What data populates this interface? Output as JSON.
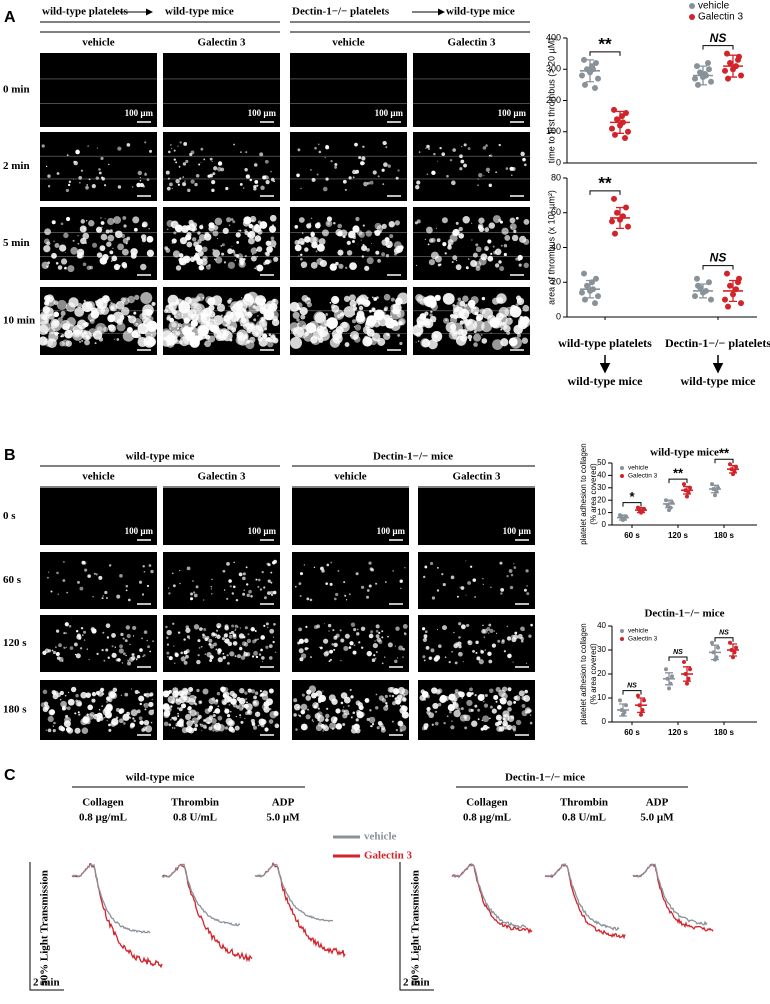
{
  "panel_a_images": {
    "label": "A",
    "groups": [
      {
        "platelets": "wild-type platelets",
        "mice": "wild-type mice"
      },
      {
        "platelets": "Dectin-1−/− platelets",
        "mice": "wild-type mice"
      }
    ],
    "columns": [
      "vehicle",
      "Galectin 3",
      "vehicle",
      "Galectin 3"
    ],
    "rows": [
      "0 min",
      "2 min",
      "5 min",
      "10 min"
    ],
    "scale_bar": "100 µm"
  },
  "panel_b_images": {
    "label": "B",
    "groups": [
      "wild-type mice",
      "Dectin-1−/− mice"
    ],
    "columns": [
      "vehicle",
      "Galectin 3",
      "vehicle",
      "Galectin 3"
    ],
    "rows": [
      "0 s",
      "60 s",
      "120 s",
      "180 s"
    ],
    "scale_bar": "100 µm"
  },
  "panel_c_aggregation": {
    "label": "C",
    "groups": [
      {
        "title": "wild-type mice",
        "agonists": [
          {
            "name": "Collagen",
            "dose": "0.8 µg/mL"
          },
          {
            "name": "Thrombin",
            "dose": "0.8 U/mL"
          },
          {
            "name": "ADP",
            "dose": "5.0 µM"
          }
        ]
      },
      {
        "title": "Dectin-1−/− mice",
        "agonists": [
          {
            "name": "Collagen",
            "dose": "0.8 µg/mL"
          },
          {
            "name": "Thrombin",
            "dose": "0.8 U/mL"
          },
          {
            "name": "ADP",
            "dose": "5.0 µM"
          }
        ]
      }
    ],
    "legend": [
      {
        "name": "vehicle",
        "color": "#8a9299"
      },
      {
        "name": "Galectin 3",
        "color": "#d2232a"
      }
    ],
    "ylabel": "50% Light Transmission",
    "time_scale": "2 min"
  },
  "chart_data": [
    {
      "type": "dot",
      "ylabel": "time to first thrombus (> 20 µM)",
      "ylim": [
        0,
        400
      ],
      "yticks": [
        0,
        100,
        200,
        300,
        400
      ],
      "legend": true,
      "series": [
        {
          "name": "vehicle",
          "color": "#8a9299",
          "values": [
            295,
            280
          ],
          "errors": [
            35,
            30
          ],
          "points": [
            [
              330,
              320,
              300,
              300,
              290,
              280,
              270,
              250,
              240,
              310
            ],
            [
              310,
              300,
              290,
              280,
              275,
              270,
              260,
              250,
              320,
              285
            ]
          ]
        },
        {
          "name": "Galectin 3",
          "color": "#d2232a",
          "values": [
            130,
            310
          ],
          "errors": [
            35,
            35
          ],
          "points": [
            [
              170,
              160,
              140,
              130,
              120,
              110,
              100,
              90,
              80,
              150
            ],
            [
              350,
              340,
              320,
              310,
              300,
              295,
              280,
              270,
              330
            ]
          ]
        }
      ],
      "annotations": [
        "**",
        "NS"
      ]
    },
    {
      "type": "dot",
      "ylabel": "area of thrombus (x 10³ µm²)",
      "ylim": [
        0,
        80
      ],
      "yticks": [
        0,
        20,
        40,
        60,
        80
      ],
      "legend": false,
      "categories": [
        "wild-type platelets",
        "Dectin-1−/− platelets"
      ],
      "recipients": [
        "wild-type mice",
        "wild-type mice"
      ],
      "series": [
        {
          "name": "vehicle",
          "color": "#8a9299",
          "values": [
            16,
            15
          ],
          "errors": [
            5,
            4
          ],
          "points": [
            [
              25,
              22,
              18,
              16,
              15,
              14,
              12,
              10,
              8,
              20
            ],
            [
              22,
              20,
              17,
              15,
              14,
              12,
              10,
              18
            ]
          ]
        },
        {
          "name": "Galectin 3",
          "color": "#d2232a",
          "values": [
            57,
            15
          ],
          "errors": [
            6,
            6
          ],
          "points": [
            [
              68,
              63,
              60,
              58,
              56,
              55,
              52,
              48
            ],
            [
              25,
              22,
              18,
              16,
              13,
              10,
              8,
              6,
              20
            ]
          ]
        }
      ],
      "annotations": [
        "**",
        "NS"
      ]
    },
    {
      "type": "dot",
      "title": "wild-type mice",
      "ylabel": [
        "platelet adhesion to collagen",
        "(% area covered)"
      ],
      "ylim": [
        0,
        50
      ],
      "yticks": [
        0,
        10,
        20,
        30,
        40,
        50
      ],
      "legend": true,
      "categories": [
        "60 s",
        "120 s",
        "180 s"
      ],
      "series": [
        {
          "name": "vehicle",
          "color": "#8a9299",
          "values": [
            6,
            17,
            29
          ],
          "errors": [
            2,
            3,
            3
          ],
          "points": [
            [
              8,
              7,
              6,
              5,
              4
            ],
            [
              20,
              18,
              16,
              14,
              12
            ],
            [
              33,
              30,
              29,
              27,
              24
            ]
          ]
        },
        {
          "name": "Galectin 3",
          "color": "#d2232a",
          "values": [
            12,
            28,
            45
          ],
          "errors": [
            2,
            3,
            3
          ],
          "points": [
            [
              14,
              13,
              12,
              11,
              10
            ],
            [
              33,
              30,
              28,
              26,
              23
            ],
            [
              49,
              47,
              45,
              43,
              41
            ]
          ]
        }
      ],
      "annotations": [
        "*",
        "**",
        "**"
      ]
    },
    {
      "type": "dot",
      "title": "Dectin-1−/− mice",
      "ylabel": [
        "platelet adhesion to collagen",
        "(% area covered)"
      ],
      "ylim": [
        0,
        40
      ],
      "yticks": [
        0,
        10,
        20,
        30,
        40
      ],
      "legend": true,
      "categories": [
        "60 s",
        "120 s",
        "180 s"
      ],
      "series": [
        {
          "name": "vehicle",
          "color": "#8a9299",
          "values": [
            5,
            18,
            29
          ],
          "errors": [
            2.5,
            2.5,
            3
          ],
          "points": [
            [
              9,
              7,
              5,
              4,
              3
            ],
            [
              22,
              19,
              18,
              16,
              14
            ],
            [
              33,
              31,
              29,
              27,
              26
            ]
          ]
        },
        {
          "name": "Galectin 3",
          "color": "#d2232a",
          "values": [
            7,
            20,
            30
          ],
          "errors": [
            3,
            3,
            2.5
          ],
          "points": [
            [
              11,
              9,
              7,
              5,
              3
            ],
            [
              25,
              22,
              20,
              18,
              16
            ],
            [
              33,
              31,
              30,
              29,
              27
            ]
          ]
        }
      ],
      "annotations": [
        "NS",
        "NS",
        "NS"
      ]
    }
  ]
}
